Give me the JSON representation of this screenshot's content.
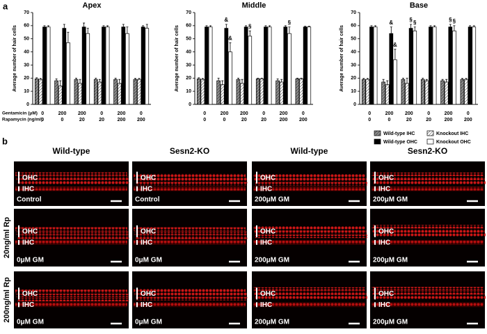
{
  "chart_data": {
    "type": "bar",
    "panel_label": "a",
    "ylabel": "Average number of hair cells",
    "ylim": [
      0,
      70
    ],
    "yticks": [
      0,
      10,
      20,
      30,
      40,
      50,
      60,
      70
    ],
    "x_rows": [
      {
        "label": "Gentamicin (μM)",
        "values": [
          0,
          200,
          200,
          0,
          200,
          0
        ]
      },
      {
        "label": "Rapamycin (ng/ml)",
        "values": [
          0,
          0,
          20,
          20,
          200,
          200
        ]
      }
    ],
    "series": [
      {
        "name": "Wild-type IHC",
        "color": "#8c8c8c",
        "hatch": true
      },
      {
        "name": "Knockout IHC",
        "color": "#ffffff",
        "hatch": true
      },
      {
        "name": "Wild-type OHC",
        "color": "#000000",
        "hatch": false
      },
      {
        "name": "Knockout OHC",
        "color": "#ffffff",
        "hatch": false
      }
    ],
    "panels": [
      {
        "title": "Apex",
        "values": [
          [
            19.5,
            18,
            19,
            19,
            19,
            19
          ],
          [
            19,
            14,
            16,
            17,
            16,
            19
          ],
          [
            59,
            58,
            59,
            59,
            59,
            59
          ],
          [
            59,
            47,
            54,
            59,
            54,
            58
          ]
        ],
        "errors": [
          [
            0.8,
            1.5,
            1,
            1,
            1,
            0.8
          ],
          [
            0.8,
            4,
            3,
            2,
            3,
            0.8
          ],
          [
            1,
            3,
            3,
            1,
            2,
            1
          ],
          [
            1,
            8,
            4,
            1,
            5,
            3
          ]
        ],
        "annotations": []
      },
      {
        "title": "Middle",
        "values": [
          [
            19.5,
            18,
            19,
            19.5,
            18,
            19.5
          ],
          [
            19,
            15,
            16,
            19.5,
            17,
            19.5
          ],
          [
            59,
            58,
            59,
            59,
            59,
            59
          ],
          [
            59,
            40,
            52,
            59,
            54,
            59
          ]
        ],
        "errors": [
          [
            0.8,
            2,
            1,
            0.5,
            1.5,
            0.5
          ],
          [
            0.8,
            3,
            3,
            0.5,
            2,
            0.5
          ],
          [
            1,
            3,
            1,
            1,
            1,
            0.5
          ],
          [
            1,
            7,
            4,
            1,
            5,
            0.5
          ]
        ],
        "annotations": [
          {
            "text": "&",
            "category": 1,
            "series": 2
          },
          {
            "text": "&",
            "category": 1,
            "series": 3
          },
          {
            "text": "§",
            "category": 2,
            "series": 3
          },
          {
            "text": "§",
            "category": 4,
            "series": 3
          }
        ]
      },
      {
        "title": "Base",
        "values": [
          [
            19,
            17,
            19,
            19,
            18,
            19
          ],
          [
            19,
            15,
            16,
            18,
            17,
            19
          ],
          [
            59,
            54,
            58,
            59,
            59,
            59
          ],
          [
            59,
            34,
            56,
            59,
            56,
            59
          ]
        ],
        "errors": [
          [
            0.8,
            2,
            1,
            1,
            1,
            0.8
          ],
          [
            0.8,
            3,
            4,
            1,
            2,
            0.8
          ],
          [
            1,
            5,
            3,
            1,
            2,
            1
          ],
          [
            1,
            8,
            3,
            1,
            4,
            1
          ]
        ],
        "annotations": [
          {
            "text": "&",
            "category": 1,
            "series": 2
          },
          {
            "text": "&",
            "category": 1,
            "series": 3
          },
          {
            "text": "§",
            "category": 2,
            "series": 2
          },
          {
            "text": "§",
            "category": 2,
            "series": 3
          },
          {
            "text": "§",
            "category": 4,
            "series": 2
          },
          {
            "text": "§",
            "category": 4,
            "series": 3
          }
        ]
      }
    ]
  },
  "panel_b": {
    "panel_label": "b",
    "columns": [
      "Wild-type",
      "Sesn2-KO",
      "Wild-type",
      "Sesn2-KO"
    ],
    "ohc_label": "OHC",
    "ihc_label": "IHC",
    "rows": [
      {
        "cells": [
          "Control",
          "Control",
          "200μM GM",
          "200μM GM"
        ]
      },
      {
        "label": "20ng/ml Rp",
        "cells": [
          "0μM GM",
          "0μM GM",
          "200μM GM",
          "200μM GM"
        ]
      },
      {
        "label": "200ng/ml Rp",
        "cells": [
          "0μM GM",
          "0μM GM",
          "200μM GM",
          "200μM GM"
        ]
      }
    ]
  }
}
